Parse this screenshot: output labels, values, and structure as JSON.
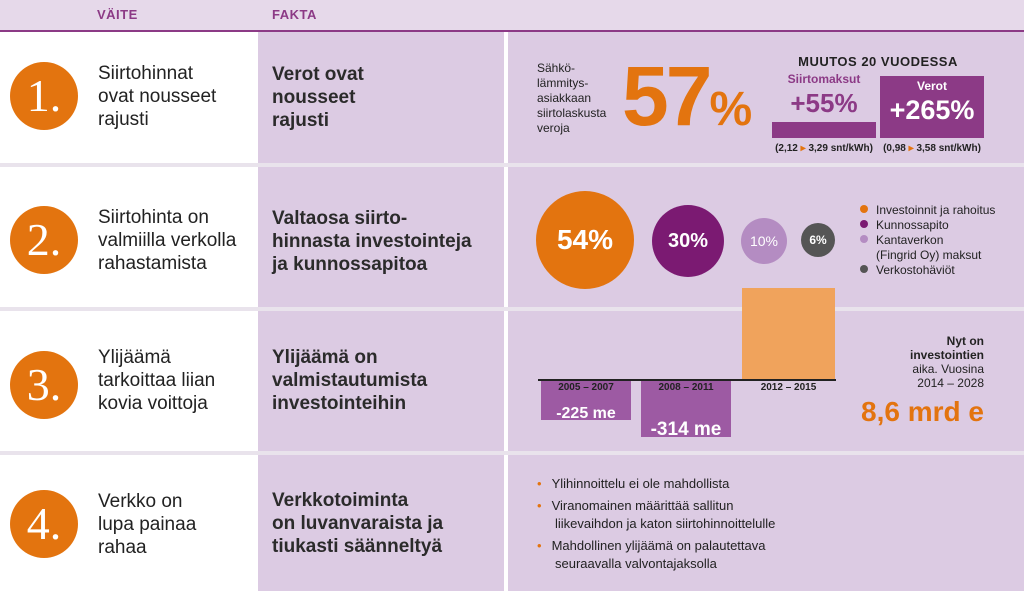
{
  "header": {
    "col_claim": "VÄITE",
    "col_fact": "FAKTA"
  },
  "colors": {
    "orange": "#e3740f",
    "purple": "#8c3a86",
    "purple_dark": "#7b1a72",
    "lilac": "#b48cc2",
    "grey": "#555555",
    "lavender": "#dccbe3"
  },
  "rows": [
    {
      "number": "1.",
      "claim": [
        "Siirtohinnat",
        "ovat nousseet",
        "rajusti"
      ],
      "fact": [
        "Verot ovat",
        "nousseet",
        "rajusti"
      ]
    },
    {
      "number": "2.",
      "claim": [
        "Siirtohinta on",
        "valmiilla verkolla",
        "rahastamista"
      ],
      "fact": [
        "Valtaosa siirto-",
        "hinnasta investointeja",
        "ja kunnossapitoa"
      ]
    },
    {
      "number": "3.",
      "claim": [
        "Ylijäämä",
        "tarkoittaa liian",
        "kovia voittoja"
      ],
      "fact": [
        "Ylijäämä on",
        "valmistautumista",
        "investointeihin"
      ]
    },
    {
      "number": "4.",
      "claim": [
        "Verkko on",
        "lupa painaa",
        "rahaa"
      ],
      "fact": [
        "Verkkotoiminta",
        "on luvanvaraista ja",
        "tiukasti säänneltyä"
      ]
    }
  ],
  "row1_graphic": {
    "label_lines": [
      "Sähkö-",
      "lämmitys-",
      "asiakkaan",
      "siirtolaskusta",
      "veroja"
    ],
    "big_percent": "57",
    "big_percent_sign": "%",
    "change_title": "MUUTOS 20 VUODESSA",
    "bars": [
      {
        "label": "Siirtomaksut",
        "value": "+55%",
        "note_from": "(2,12",
        "note_to": "3,29 snt/kWh)",
        "level": 55
      },
      {
        "label": "Verot",
        "value": "+265%",
        "note_from": "(0,98",
        "note_to": "3,58 snt/kWh)",
        "level": 265
      }
    ]
  },
  "row2_graphic": {
    "slices": [
      {
        "value": "54%",
        "name": "Investoinnit ja rahoitus",
        "name_lines": [
          "Investoinnit ja rahoitus"
        ],
        "color": "#e3740f",
        "share": 54
      },
      {
        "value": "30%",
        "name": "Kunnossapito",
        "name_lines": [
          "Kunnossapito"
        ],
        "color": "#7b1a72",
        "share": 30
      },
      {
        "value": "10%",
        "name": "Kantaverkon (Fingrid Oy) maksut",
        "name_lines": [
          "Kantaverkon",
          "(Fingrid Oy) maksut"
        ],
        "color": "#b48cc2",
        "share": 10
      },
      {
        "value": "6%",
        "name": "Verkostohäviöt",
        "name_lines": [
          "Verkostohäviöt"
        ],
        "color": "#555555",
        "share": 6
      }
    ]
  },
  "row3_graphic": {
    "periods": [
      {
        "label": "2005 – 2007",
        "value": "-225 me",
        "amount": -225
      },
      {
        "label": "2008 – 2011",
        "value": "-314 me",
        "amount": -314
      },
      {
        "label": "2012 – 2015",
        "value": "",
        "amount": 480
      }
    ],
    "note_lines": [
      "Nyt on",
      "investointien",
      "aika. Vuosina",
      "2014 – 2028"
    ],
    "total": "8,6 mrd e"
  },
  "row4_graphic": {
    "bullets": [
      [
        "Ylihinnoittelu ei ole mahdollista"
      ],
      [
        "Viranomainen määrittää sallitun",
        "liikevaihdon ja katon siirtohinnoittelulle"
      ],
      [
        "Mahdollinen ylijäämä on palautettava",
        "seuraavalla valvontajaksolla"
      ]
    ]
  }
}
